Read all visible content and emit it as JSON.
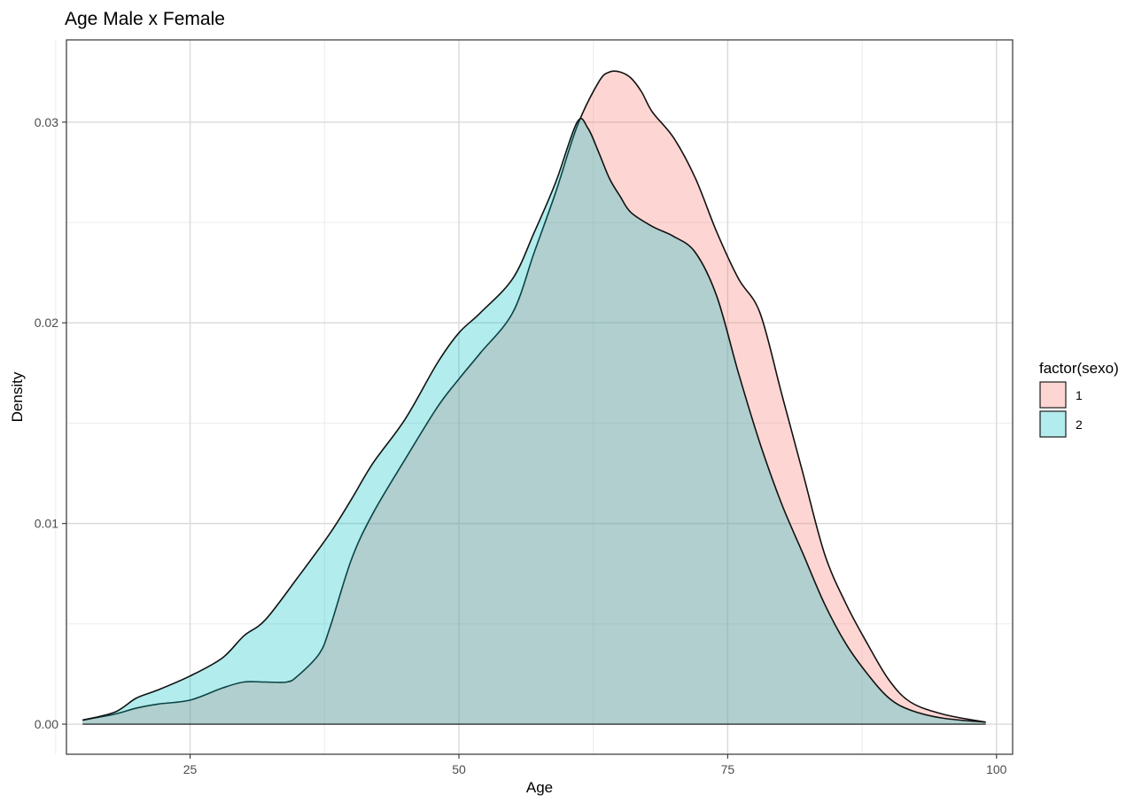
{
  "chart_data": {
    "type": "area",
    "title": "Age Male x Female",
    "xlabel": "Age",
    "ylabel": "Density",
    "xlim": [
      13.5,
      101.5
    ],
    "ylim": [
      -0.0015,
      0.0341
    ],
    "x_ticks": [
      25,
      50,
      75,
      100
    ],
    "x_tick_labels": [
      "25",
      "50",
      "75",
      "100"
    ],
    "x_minor_ticks": [
      12.5,
      37.5,
      62.5,
      87.5
    ],
    "y_ticks": [
      0.0,
      0.01,
      0.02,
      0.03
    ],
    "y_tick_labels": [
      "0.00",
      "0.01",
      "0.02",
      "0.03"
    ],
    "y_minor_ticks": [
      0.005,
      0.015,
      0.025
    ],
    "grid": true,
    "legend": {
      "title": "factor(sexo)",
      "position": "right",
      "entries": [
        {
          "label": "1",
          "color": "#F8766D"
        },
        {
          "label": "2",
          "color": "#00BFC4"
        }
      ]
    },
    "fill_opacity": 0.3,
    "series": [
      {
        "name": "1",
        "color": "#F8766D",
        "x": [
          15,
          18,
          20,
          22,
          25,
          28,
          30,
          32,
          34,
          35,
          37,
          38,
          40,
          42,
          45,
          48,
          50,
          52,
          55,
          57,
          59,
          61,
          63,
          64,
          65,
          66,
          67,
          68,
          70,
          72,
          74,
          76,
          78,
          80,
          82,
          84,
          86,
          88,
          90,
          92,
          95,
          99
        ],
        "y": [
          0.0002,
          0.0005,
          0.0008,
          0.001,
          0.0012,
          0.0018,
          0.0021,
          0.0021,
          0.0021,
          0.0024,
          0.0035,
          0.0048,
          0.0082,
          0.0105,
          0.0132,
          0.0158,
          0.0172,
          0.0185,
          0.0205,
          0.0235,
          0.0265,
          0.0298,
          0.032,
          0.0325,
          0.0325,
          0.0322,
          0.0315,
          0.0305,
          0.0292,
          0.0272,
          0.0245,
          0.0222,
          0.0205,
          0.0165,
          0.0125,
          0.0085,
          0.006,
          0.004,
          0.0022,
          0.0011,
          0.0005,
          0.0001
        ]
      },
      {
        "name": "2",
        "color": "#00BFC4",
        "x": [
          15,
          18,
          20,
          22,
          25,
          28,
          30,
          32,
          35,
          38,
          40,
          42,
          45,
          48,
          50,
          52,
          55,
          57,
          59,
          61,
          62,
          63,
          64,
          65,
          66,
          68,
          70,
          72,
          74,
          76,
          78,
          80,
          82,
          84,
          86,
          88,
          90,
          92,
          95,
          99
        ],
        "y": [
          0.0002,
          0.0006,
          0.0013,
          0.0017,
          0.0024,
          0.0033,
          0.0044,
          0.0052,
          0.0073,
          0.0095,
          0.0112,
          0.013,
          0.0152,
          0.018,
          0.0195,
          0.0205,
          0.0222,
          0.0245,
          0.027,
          0.03,
          0.0297,
          0.0285,
          0.0272,
          0.0263,
          0.0255,
          0.0248,
          0.0243,
          0.0235,
          0.0213,
          0.0175,
          0.014,
          0.011,
          0.0085,
          0.006,
          0.004,
          0.0025,
          0.0013,
          0.0007,
          0.0003,
          0.0001
        ]
      }
    ]
  }
}
